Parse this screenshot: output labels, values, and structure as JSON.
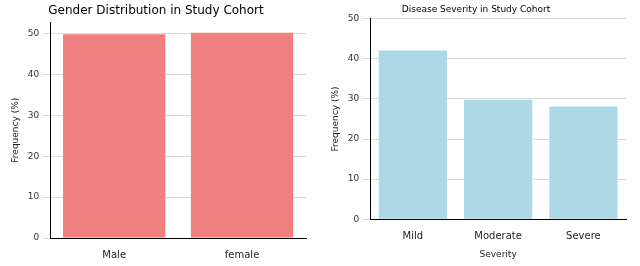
{
  "chart_data": [
    {
      "type": "bar",
      "title": "Gender Distribution in Study Cohort",
      "categories": [
        "Male",
        "female"
      ],
      "values": [
        49.8,
        50.2
      ],
      "color": "#f08080",
      "y_label": "Frequency (%)",
      "ylim": [
        0,
        52.7
      ],
      "yticks": [
        0,
        10,
        20,
        30,
        40,
        50
      ],
      "grid": true
    },
    {
      "type": "bar",
      "title": "Disease Severity in Study Cohort",
      "categories": [
        "Mild",
        "Moderate",
        "Severe"
      ],
      "values": [
        42.1,
        29.8,
        28.1
      ],
      "color": "#add8e6",
      "x_label": "Severity",
      "y_label": "Frequency (%)",
      "ylim": [
        0,
        50
      ],
      "yticks": [
        0,
        10,
        20,
        30,
        40,
        50
      ],
      "grid": true
    }
  ]
}
